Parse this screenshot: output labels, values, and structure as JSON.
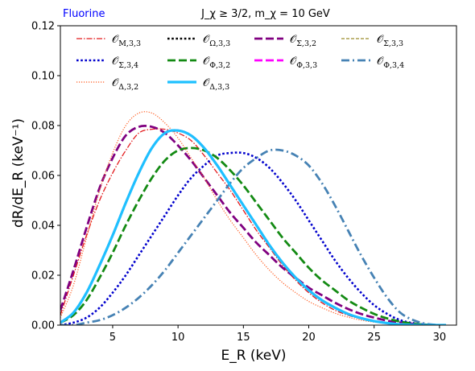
{
  "header": {
    "element": "Fluorine",
    "element_color": "#0000ff",
    "title": "J_χ ≥ 3/2, m_χ = 10 GeV"
  },
  "chart_data": {
    "type": "line",
    "xlabel": "E_R (keV)",
    "ylabel": "dR/dE_R (keV⁻¹)",
    "xlim": [
      1,
      31.3
    ],
    "ylim": [
      0,
      0.12
    ],
    "xticks": [
      5,
      10,
      15,
      20,
      25,
      30
    ],
    "yticks": [
      0.0,
      0.02,
      0.04,
      0.06,
      0.08,
      0.1,
      0.12
    ],
    "grid": false,
    "legend_position": "top",
    "series": [
      {
        "name": "𝒪_{M,3,3}",
        "color": "#e31a1c",
        "dash": "dashdot-thin",
        "x": [
          1,
          2,
          3,
          4,
          5,
          6,
          7,
          8,
          9,
          10,
          11,
          12,
          13,
          14,
          15,
          16,
          17,
          18,
          19,
          20,
          21,
          22,
          23,
          24,
          25,
          26,
          27,
          28,
          29,
          30,
          30.5
        ],
        "y": [
          0.004,
          0.02,
          0.036,
          0.05,
          0.061,
          0.07,
          0.077,
          0.0785,
          0.0785,
          0.077,
          0.074,
          0.068,
          0.061,
          0.054,
          0.046,
          0.038,
          0.031,
          0.024,
          0.018,
          0.013,
          0.009,
          0.006,
          0.004,
          0.0025,
          0.0014,
          0.0007,
          0.0003,
          0.0001,
          3e-05,
          0.0,
          0.0
        ]
      },
      {
        "name": "𝒪_{Ω,3,3}",
        "color": "#000000",
        "dash": "dotted",
        "x": [
          1,
          2,
          3,
          4,
          5,
          6,
          7,
          8,
          9,
          10,
          11,
          12,
          13,
          14,
          15,
          16,
          17,
          18,
          19,
          20,
          21,
          22,
          23,
          24,
          25,
          26,
          27,
          28,
          29,
          30,
          30.5
        ],
        "y": [
          0.001,
          0.005,
          0.013,
          0.024,
          0.036,
          0.049,
          0.061,
          0.071,
          0.077,
          0.078,
          0.076,
          0.071,
          0.064,
          0.056,
          0.048,
          0.04,
          0.032,
          0.025,
          0.019,
          0.014,
          0.01,
          0.007,
          0.0045,
          0.0028,
          0.0016,
          0.0008,
          0.0003,
          0.0001,
          0.0,
          0.0,
          0.0
        ]
      },
      {
        "name": "𝒪_{Σ,3,2}",
        "color": "#800080",
        "dash": "dashed-wide",
        "x": [
          1,
          2,
          3,
          4,
          5,
          6,
          7,
          8,
          9,
          10,
          11,
          12,
          13,
          14,
          15,
          16,
          17,
          18,
          19,
          20,
          21,
          22,
          23,
          24,
          25,
          26,
          27,
          28,
          29,
          30,
          30.5
        ],
        "y": [
          0.006,
          0.022,
          0.039,
          0.055,
          0.067,
          0.076,
          0.0795,
          0.0795,
          0.077,
          0.072,
          0.066,
          0.059,
          0.052,
          0.045,
          0.039,
          0.033,
          0.028,
          0.023,
          0.019,
          0.015,
          0.012,
          0.009,
          0.0065,
          0.0045,
          0.003,
          0.0018,
          0.001,
          0.0005,
          0.0002,
          0.0,
          0.0
        ]
      },
      {
        "name": "𝒪_{Σ,3,3}",
        "color": "#9a8c2a",
        "dash": "dashed-thin",
        "x": [
          1,
          2,
          3,
          4,
          5,
          6,
          7,
          8,
          9,
          10,
          11,
          12,
          13,
          14,
          15,
          16,
          17,
          18,
          19,
          20,
          21,
          22,
          23,
          24,
          25,
          26,
          27,
          28,
          29,
          30,
          30.5
        ],
        "y": [
          0.001,
          0.005,
          0.013,
          0.024,
          0.036,
          0.049,
          0.061,
          0.071,
          0.077,
          0.078,
          0.076,
          0.071,
          0.064,
          0.056,
          0.048,
          0.04,
          0.032,
          0.025,
          0.019,
          0.014,
          0.01,
          0.007,
          0.0045,
          0.0028,
          0.0016,
          0.0008,
          0.0003,
          0.0001,
          0.0,
          0.0,
          0.0
        ]
      },
      {
        "name": "𝒪_{Σ,3,4}",
        "color": "#0000cd",
        "dash": "dotted",
        "x": [
          1,
          2,
          3,
          4,
          5,
          6,
          7,
          8,
          9,
          10,
          11,
          12,
          13,
          14,
          15,
          16,
          17,
          18,
          19,
          20,
          21,
          22,
          23,
          24,
          25,
          26,
          27,
          28,
          29,
          30,
          30.5
        ],
        "y": [
          0.0,
          0.001,
          0.003,
          0.007,
          0.013,
          0.02,
          0.028,
          0.036,
          0.044,
          0.052,
          0.059,
          0.064,
          0.068,
          0.069,
          0.069,
          0.067,
          0.063,
          0.057,
          0.05,
          0.042,
          0.034,
          0.026,
          0.019,
          0.013,
          0.008,
          0.0045,
          0.002,
          0.0008,
          0.0002,
          0.0,
          0.0
        ]
      },
      {
        "name": "𝒪_{Φ,3,2}",
        "color": "#138a13",
        "dash": "dashed-wide",
        "x": [
          1,
          2,
          3,
          4,
          5,
          6,
          7,
          8,
          9,
          10,
          11,
          12,
          13,
          14,
          15,
          16,
          17,
          18,
          19,
          20,
          21,
          22,
          23,
          24,
          25,
          26,
          27,
          28,
          29,
          30,
          30.5
        ],
        "y": [
          0.001,
          0.004,
          0.01,
          0.019,
          0.029,
          0.04,
          0.05,
          0.059,
          0.066,
          0.07,
          0.071,
          0.07,
          0.067,
          0.062,
          0.056,
          0.049,
          0.042,
          0.035,
          0.029,
          0.023,
          0.018,
          0.014,
          0.01,
          0.007,
          0.0045,
          0.0027,
          0.0014,
          0.0006,
          0.0002,
          0.0,
          0.0
        ]
      },
      {
        "name": "𝒪_{Φ,3,3}",
        "color": "#ff00ff",
        "dash": "dashed-wide",
        "x": [
          1,
          2,
          3,
          4,
          5,
          6,
          7,
          8,
          9,
          10,
          11,
          12,
          13,
          14,
          15,
          16,
          17,
          18,
          19,
          20,
          21,
          22,
          23,
          24,
          25,
          26,
          27,
          28,
          29,
          30,
          30.5
        ],
        "y": [
          0.001,
          0.005,
          0.013,
          0.024,
          0.036,
          0.049,
          0.061,
          0.071,
          0.077,
          0.078,
          0.076,
          0.071,
          0.064,
          0.056,
          0.048,
          0.04,
          0.032,
          0.025,
          0.019,
          0.014,
          0.01,
          0.007,
          0.0045,
          0.0028,
          0.0016,
          0.0008,
          0.0003,
          0.0001,
          0.0,
          0.0,
          0.0
        ]
      },
      {
        "name": "𝒪_{Φ,3,4}",
        "color": "#4682b4",
        "dash": "dashdot",
        "x": [
          1,
          2,
          3,
          4,
          5,
          6,
          7,
          8,
          9,
          10,
          11,
          12,
          13,
          14,
          15,
          16,
          17,
          18,
          19,
          20,
          21,
          22,
          23,
          24,
          25,
          26,
          27,
          28,
          29,
          30,
          30.5
        ],
        "y": [
          0.0,
          0.0,
          0.001,
          0.002,
          0.004,
          0.007,
          0.011,
          0.016,
          0.022,
          0.029,
          0.036,
          0.043,
          0.05,
          0.057,
          0.063,
          0.067,
          0.07,
          0.07,
          0.068,
          0.064,
          0.057,
          0.048,
          0.038,
          0.028,
          0.019,
          0.011,
          0.005,
          0.002,
          0.0005,
          0.0,
          0.0
        ]
      },
      {
        "name": "𝒪_{Δ,3,2}",
        "color": "#ff5a1e",
        "dash": "dotted-fine",
        "x": [
          1,
          2,
          3,
          4,
          5,
          6,
          7,
          8,
          9,
          10,
          11,
          12,
          13,
          14,
          15,
          16,
          17,
          18,
          19,
          20,
          21,
          22,
          23,
          24,
          25,
          26,
          27,
          28,
          29,
          30,
          30.5
        ],
        "y": [
          0.003,
          0.016,
          0.035,
          0.054,
          0.069,
          0.08,
          0.085,
          0.085,
          0.081,
          0.075,
          0.067,
          0.059,
          0.05,
          0.042,
          0.035,
          0.028,
          0.022,
          0.017,
          0.013,
          0.0095,
          0.007,
          0.0048,
          0.0032,
          0.002,
          0.0012,
          0.0006,
          0.0003,
          0.0001,
          0.0,
          0.0,
          0.0
        ]
      },
      {
        "name": "𝒪_{Δ,3,3}",
        "color": "#1ec0ff",
        "dash": "solid-thick",
        "x": [
          1,
          2,
          3,
          4,
          5,
          6,
          7,
          8,
          9,
          10,
          11,
          12,
          13,
          14,
          15,
          16,
          17,
          18,
          19,
          20,
          21,
          22,
          23,
          24,
          25,
          26,
          27,
          28,
          29,
          30,
          30.5
        ],
        "y": [
          0.001,
          0.005,
          0.013,
          0.024,
          0.036,
          0.049,
          0.061,
          0.071,
          0.077,
          0.078,
          0.076,
          0.071,
          0.064,
          0.056,
          0.048,
          0.04,
          0.032,
          0.025,
          0.019,
          0.014,
          0.01,
          0.007,
          0.0045,
          0.0028,
          0.0016,
          0.0008,
          0.0003,
          0.0001,
          0.0,
          0.0,
          0.0
        ]
      }
    ]
  }
}
